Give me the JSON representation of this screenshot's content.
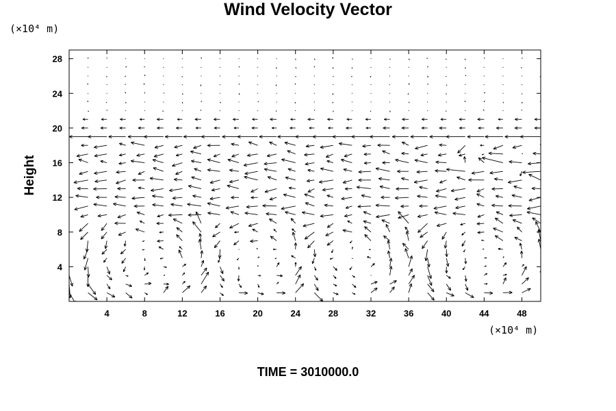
{
  "title": "Wind Velocity Vector",
  "time_label": "TIME = 3010000.0",
  "chart_data": {
    "type": "quiver",
    "title": "Wind Velocity Vector",
    "ylabel": "Height",
    "xlabel": "",
    "x_unit": "(×10⁴ m)",
    "y_unit": "(×10⁴ m)",
    "xlim": [
      0,
      50
    ],
    "ylim": [
      0,
      29
    ],
    "xticks": [
      4,
      8,
      12,
      16,
      20,
      24,
      28,
      32,
      36,
      40,
      44,
      48
    ],
    "yticks": [
      4,
      8,
      12,
      16,
      20,
      24,
      28
    ],
    "grid": false,
    "legend": "none",
    "grid_dx": 2,
    "grid_dy": 1,
    "layers": [
      {
        "y_range": [
          0,
          9
        ],
        "pattern": "convective cells",
        "cell_centers_x": [
          8,
          20,
          30,
          44
        ],
        "max_speed": 2.5
      },
      {
        "y_range": [
          10,
          18
        ],
        "pattern": "predominantly westward flow",
        "max_speed": 3.0
      },
      {
        "y": 19,
        "pattern": "strong westward jet",
        "max_speed": 4.0
      },
      {
        "y_range": [
          20,
          29
        ],
        "pattern": "weak flow",
        "max_speed": 0.6
      }
    ]
  }
}
